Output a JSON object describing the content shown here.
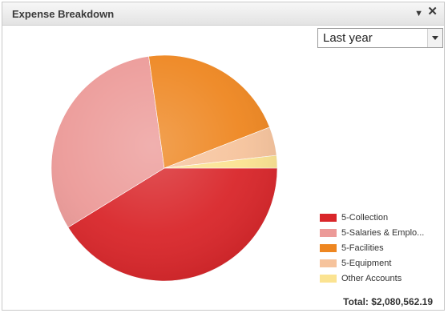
{
  "widget": {
    "title": "Expense Breakdown",
    "collapse_icon": "chevron-down-icon",
    "close_icon": "close-icon"
  },
  "period_select": {
    "selected": "Last year"
  },
  "legend": {
    "items": [
      {
        "label": "5-Collection",
        "color": "#d9262a"
      },
      {
        "label": "5-Salaries & Emplo...",
        "color": "#ec9a98"
      },
      {
        "label": "5-Facilities",
        "color": "#ee8620"
      },
      {
        "label": "5-Equipment",
        "color": "#f6c39c"
      },
      {
        "label": "Other Accounts",
        "color": "#fbe391"
      }
    ]
  },
  "total": {
    "text": "Total: $2,080,562.19"
  },
  "chart_data": {
    "type": "pie",
    "categories": [
      "5-Collection",
      "5-Salaries & Emplo...",
      "5-Facilities",
      "5-Equipment",
      "Other Accounts"
    ],
    "values": [
      41.2,
      31.6,
      21.3,
      4.1,
      1.8
    ],
    "colors": [
      "#d9262a",
      "#ec9a98",
      "#ee8620",
      "#f6c39c",
      "#fbe391"
    ],
    "legend": "right-bottom"
  }
}
